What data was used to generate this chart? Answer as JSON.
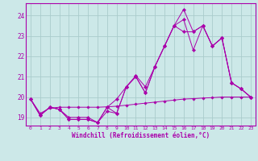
{
  "xlabel": "Windchill (Refroidissement éolien,°C)",
  "x_values": [
    0,
    1,
    2,
    3,
    4,
    5,
    6,
    7,
    8,
    9,
    10,
    11,
    12,
    13,
    14,
    15,
    16,
    17,
    18,
    19,
    20,
    21,
    22,
    23
  ],
  "line1": [
    19.9,
    19.1,
    19.5,
    19.4,
    18.9,
    18.9,
    18.9,
    18.75,
    19.3,
    19.2,
    20.5,
    21.0,
    20.2,
    21.5,
    22.5,
    23.5,
    23.2,
    23.2,
    23.5,
    22.5,
    22.9,
    20.7,
    20.4,
    20.0
  ],
  "line2": [
    19.9,
    19.1,
    19.5,
    19.4,
    18.9,
    18.9,
    18.9,
    18.75,
    19.5,
    19.9,
    20.5,
    21.0,
    20.2,
    21.5,
    22.5,
    23.5,
    23.8,
    22.3,
    23.5,
    22.5,
    22.9,
    20.7,
    20.4,
    20.0
  ],
  "line3": [
    19.9,
    19.1,
    19.5,
    19.4,
    19.0,
    19.0,
    19.0,
    18.75,
    19.5,
    19.2,
    20.5,
    21.05,
    20.5,
    21.5,
    22.5,
    23.5,
    24.3,
    23.2,
    23.5,
    22.5,
    22.9,
    20.7,
    20.4,
    20.0
  ],
  "line4": [
    19.9,
    19.2,
    19.45,
    19.5,
    19.5,
    19.5,
    19.5,
    19.5,
    19.52,
    19.55,
    19.6,
    19.65,
    19.7,
    19.75,
    19.8,
    19.85,
    19.9,
    19.92,
    19.95,
    19.97,
    20.0,
    20.0,
    20.0,
    20.0
  ],
  "line_color": "#aa00aa",
  "bg_color": "#cce8e8",
  "grid_color": "#aacccc",
  "ylim": [
    18.6,
    24.6
  ],
  "yticks": [
    19,
    20,
    21,
    22,
    23,
    24
  ],
  "xticks": [
    0,
    1,
    2,
    3,
    4,
    5,
    6,
    7,
    8,
    9,
    10,
    11,
    12,
    13,
    14,
    15,
    16,
    17,
    18,
    19,
    20,
    21,
    22,
    23
  ]
}
